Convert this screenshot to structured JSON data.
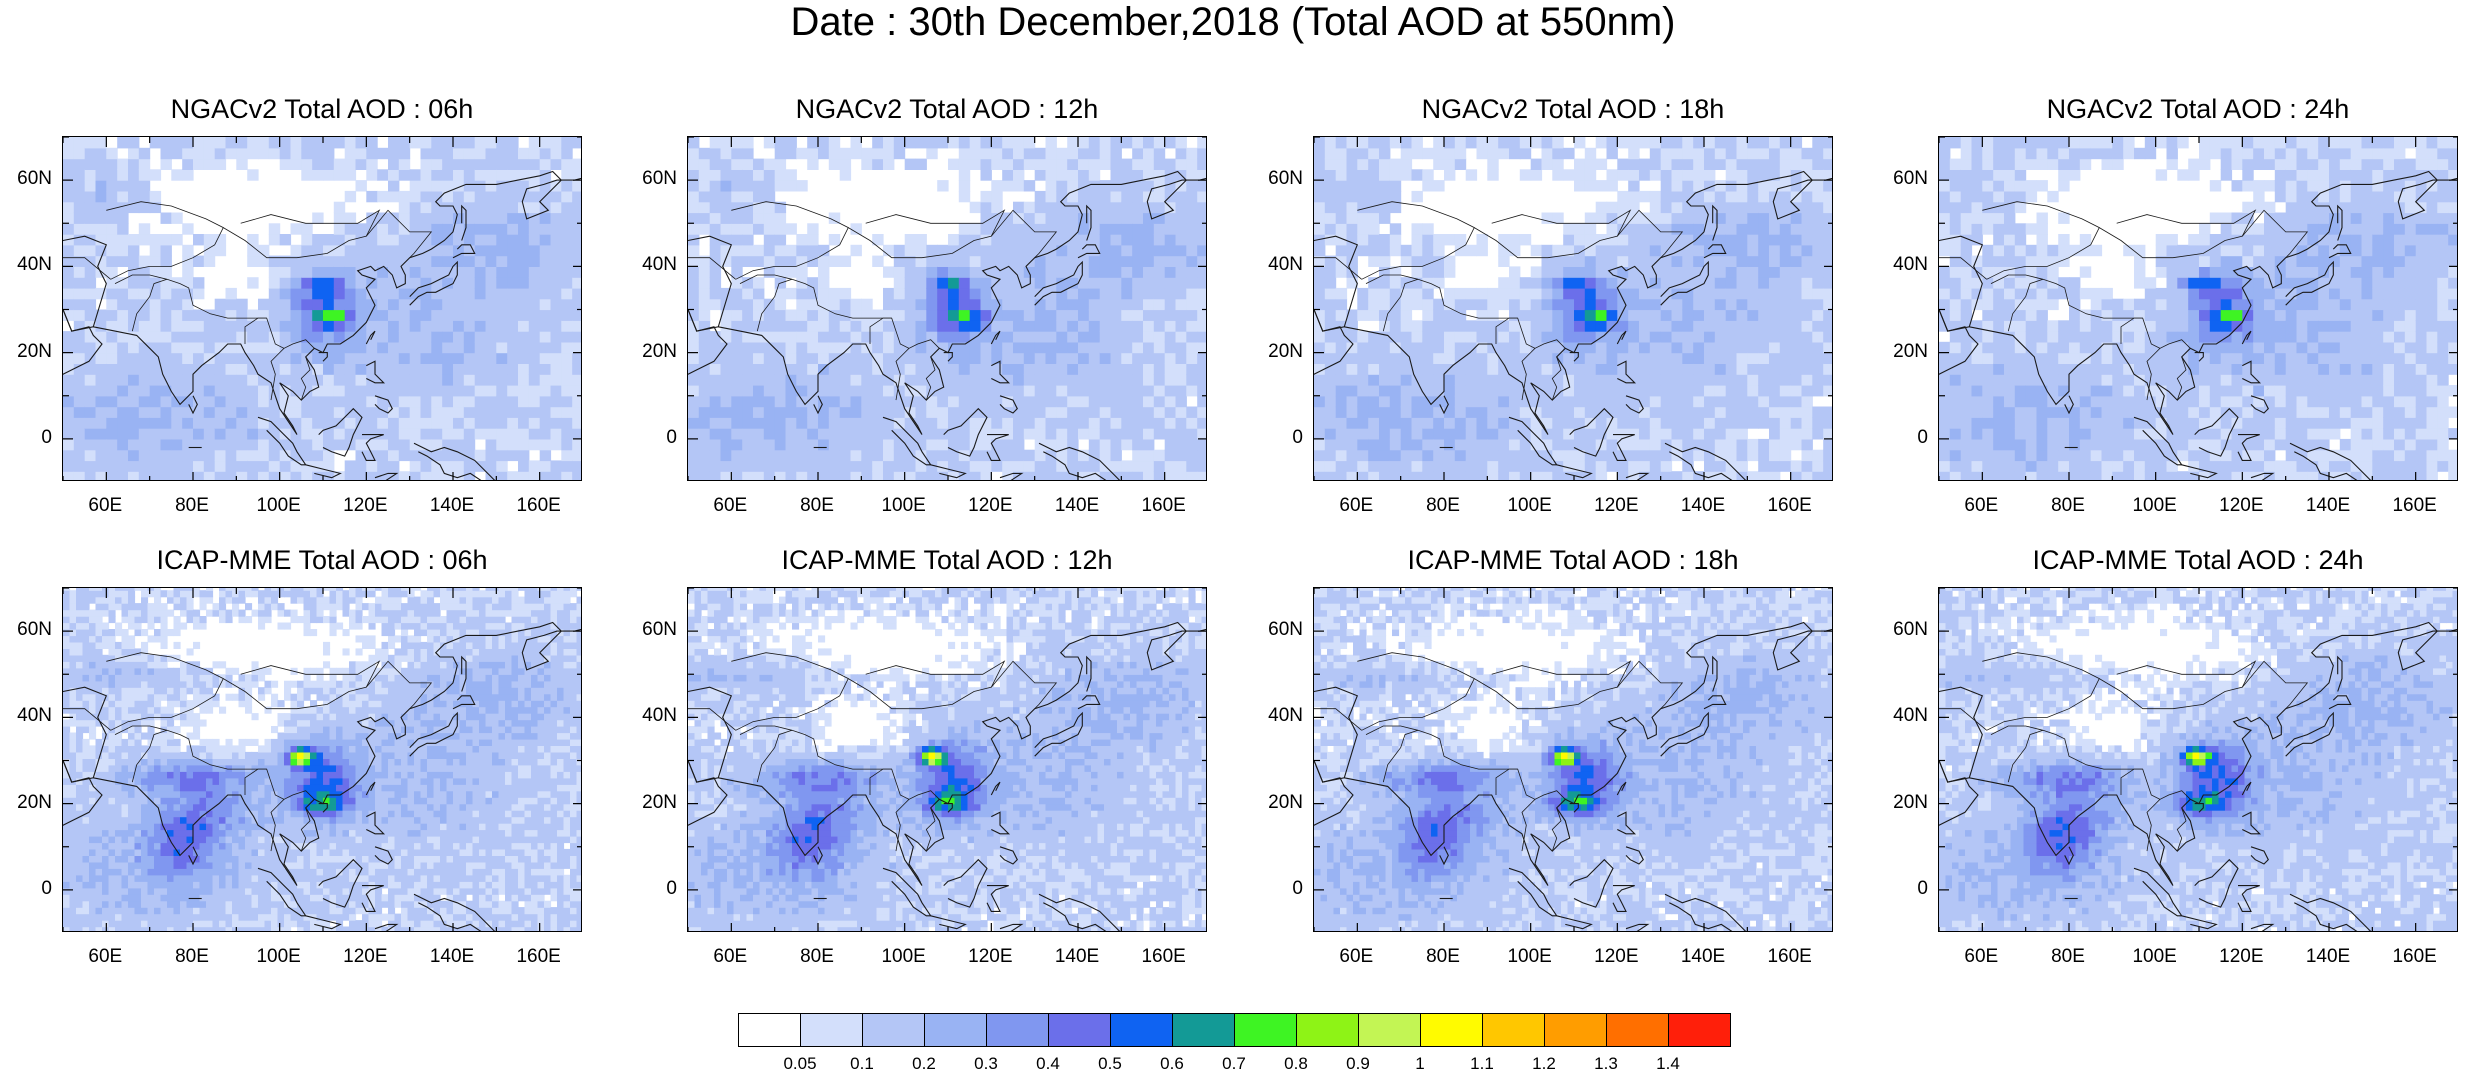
{
  "title": "Date : 30th December,2018 (Total AOD at 550nm)",
  "axes": {
    "lat_ticks": [
      "60N",
      "40N",
      "20N",
      "0"
    ],
    "lon_ticks": [
      "60E",
      "80E",
      "100E",
      "120E",
      "140E",
      "160E"
    ]
  },
  "panels": [
    {
      "id": "ngac-06",
      "title": "NGACv2 Total AOD : 06h",
      "model": "NGACv2",
      "lead": "06h"
    },
    {
      "id": "ngac-12",
      "title": "NGACv2 Total AOD : 12h",
      "model": "NGACv2",
      "lead": "12h"
    },
    {
      "id": "ngac-18",
      "title": "NGACv2 Total AOD : 18h",
      "model": "NGACv2",
      "lead": "18h"
    },
    {
      "id": "ngac-24",
      "title": "NGACv2 Total AOD : 24h",
      "model": "NGACv2",
      "lead": "24h"
    },
    {
      "id": "icap-06",
      "title": "ICAP-MME Total AOD : 06h",
      "model": "ICAP-MME",
      "lead": "06h"
    },
    {
      "id": "icap-12",
      "title": "ICAP-MME Total AOD : 12h",
      "model": "ICAP-MME",
      "lead": "12h"
    },
    {
      "id": "icap-18",
      "title": "ICAP-MME Total AOD : 18h",
      "model": "ICAP-MME",
      "lead": "18h"
    },
    {
      "id": "icap-24",
      "title": "ICAP-MME Total AOD : 24h",
      "model": "ICAP-MME",
      "lead": "24h"
    }
  ],
  "colorbar": {
    "labels": [
      "0.05",
      "0.1",
      "0.2",
      "0.3",
      "0.4",
      "0.5",
      "0.6",
      "0.7",
      "0.8",
      "0.9",
      "1",
      "1.1",
      "1.2",
      "1.3",
      "1.4"
    ],
    "colors": [
      "#ffffff",
      "#d3dffb",
      "#b4c6f6",
      "#99b3f3",
      "#8097f0",
      "#6b6fea",
      "#0f63f2",
      "#139a96",
      "#3ef423",
      "#8ef316",
      "#c3f554",
      "#fffb00",
      "#ffc700",
      "#ff9d00",
      "#ff6f00",
      "#ff1f0a"
    ]
  }
}
